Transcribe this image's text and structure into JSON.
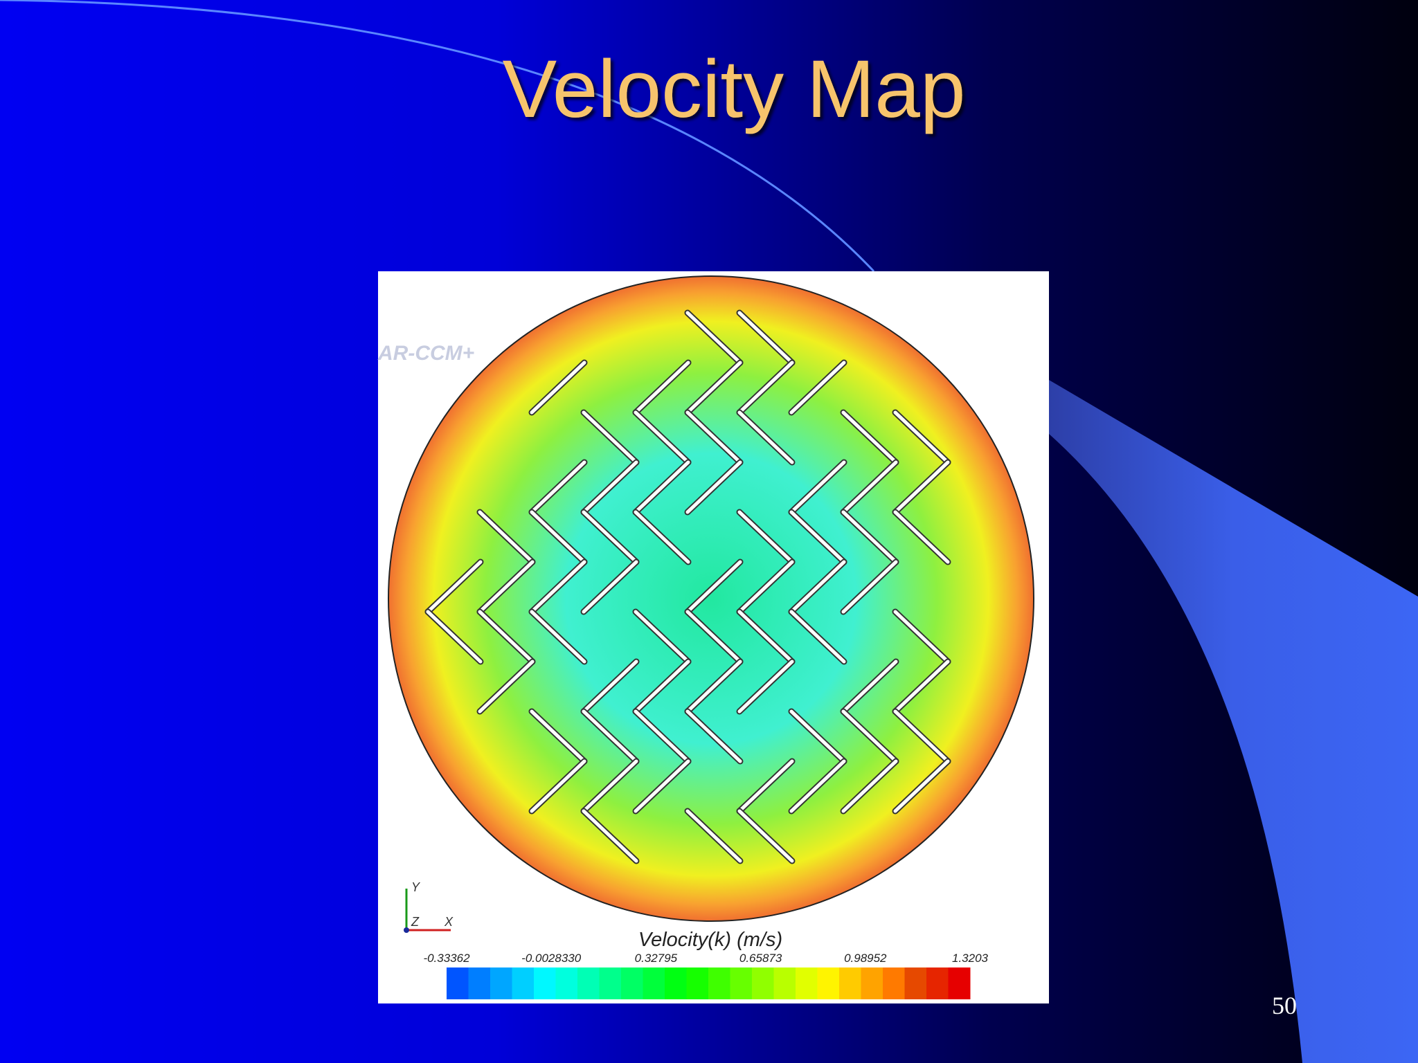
{
  "title": "Velocity Map",
  "figure": {
    "watermark": "AR-CCM+",
    "axes": {
      "y": "Y",
      "z": "Z",
      "x": "X"
    },
    "colorbar": {
      "label": "Velocity(k) (m/s)",
      "ticks": [
        "-0.33362",
        "-0.0028330",
        "0.32795",
        "0.65873",
        "0.98952",
        "1.3203"
      ]
    }
  },
  "page_number": "50"
}
